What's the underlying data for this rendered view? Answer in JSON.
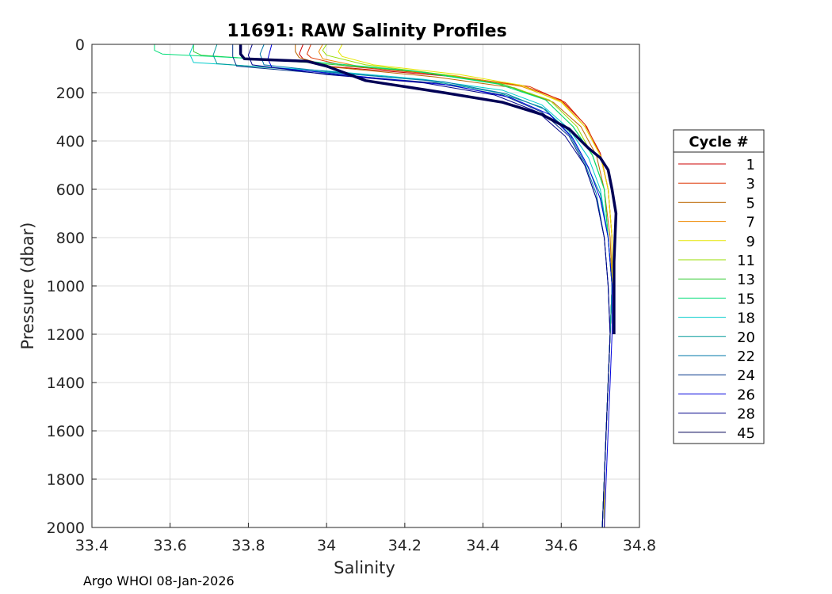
{
  "chart_data": {
    "type": "line",
    "title": "11691: RAW Salinity Profiles",
    "xlabel": "Salinity",
    "ylabel": "Pressure (dbar)",
    "xlim": [
      33.4,
      34.8
    ],
    "ylim": [
      0,
      2000
    ],
    "y_reversed": true,
    "grid": true,
    "x_ticks": [
      "33.4",
      "33.6",
      "33.8",
      "34",
      "34.2",
      "34.4",
      "34.6",
      "34.8"
    ],
    "y_ticks": [
      "0",
      "200",
      "400",
      "600",
      "800",
      "1000",
      "1200",
      "1400",
      "1600",
      "1800",
      "2000"
    ],
    "legend": {
      "title": "Cycle #",
      "placement": "outside-right"
    },
    "series": [
      {
        "name": "1",
        "color": "#cc0000",
        "points": [
          [
            33.94,
            0
          ],
          [
            33.93,
            40
          ],
          [
            33.94,
            60
          ],
          [
            34.0,
            90
          ],
          [
            34.3,
            130
          ],
          [
            34.5,
            170
          ],
          [
            34.6,
            230
          ],
          [
            34.66,
            330
          ],
          [
            34.7,
            450
          ],
          [
            34.72,
            600
          ],
          [
            34.73,
            800
          ],
          [
            34.73,
            1000
          ],
          [
            34.725,
            1200
          ],
          [
            34.72,
            1400
          ],
          [
            34.715,
            1600
          ],
          [
            34.71,
            1800
          ],
          [
            34.71,
            2000
          ]
        ]
      },
      {
        "name": "3",
        "color": "#dd3300",
        "points": [
          [
            33.96,
            0
          ],
          [
            33.95,
            40
          ],
          [
            33.96,
            55
          ],
          [
            34.05,
            90
          ],
          [
            34.32,
            130
          ],
          [
            34.52,
            175
          ],
          [
            34.61,
            240
          ],
          [
            34.665,
            340
          ],
          [
            34.7,
            460
          ],
          [
            34.72,
            600
          ],
          [
            34.73,
            800
          ],
          [
            34.73,
            1000
          ],
          [
            34.725,
            1200
          ],
          [
            34.72,
            1400
          ],
          [
            34.715,
            1600
          ],
          [
            34.71,
            1800
          ],
          [
            34.71,
            2000
          ]
        ]
      },
      {
        "name": "5",
        "color": "#bb6600",
        "points": [
          [
            33.92,
            0
          ],
          [
            33.92,
            30
          ],
          [
            33.93,
            55
          ],
          [
            34.02,
            95
          ],
          [
            34.28,
            135
          ],
          [
            34.48,
            180
          ],
          [
            34.58,
            240
          ],
          [
            34.65,
            340
          ],
          [
            34.69,
            460
          ],
          [
            34.71,
            600
          ],
          [
            34.725,
            800
          ],
          [
            34.73,
            1000
          ],
          [
            34.725,
            1200
          ],
          [
            34.72,
            1400
          ],
          [
            34.715,
            1600
          ],
          [
            34.71,
            1800
          ],
          [
            34.705,
            2000
          ]
        ]
      },
      {
        "name": "7",
        "color": "#ee8800",
        "points": [
          [
            33.99,
            0
          ],
          [
            33.98,
            30
          ],
          [
            33.99,
            60
          ],
          [
            34.08,
            90
          ],
          [
            34.33,
            130
          ],
          [
            34.5,
            175
          ],
          [
            34.6,
            235
          ],
          [
            34.66,
            340
          ],
          [
            34.7,
            460
          ],
          [
            34.72,
            600
          ],
          [
            34.73,
            800
          ],
          [
            34.73,
            1000
          ],
          [
            34.725,
            1200
          ],
          [
            34.72,
            1400
          ],
          [
            34.715,
            1600
          ],
          [
            34.71,
            1800
          ],
          [
            34.71,
            2000
          ]
        ]
      },
      {
        "name": "9",
        "color": "#e6e600",
        "points": [
          [
            34.04,
            0
          ],
          [
            34.03,
            30
          ],
          [
            34.04,
            50
          ],
          [
            34.12,
            85
          ],
          [
            34.34,
            125
          ],
          [
            34.5,
            170
          ],
          [
            34.6,
            240
          ],
          [
            34.66,
            340
          ],
          [
            34.7,
            460
          ],
          [
            34.72,
            600
          ],
          [
            34.73,
            800
          ],
          [
            34.73,
            1000
          ],
          [
            34.725,
            1200
          ],
          [
            34.72,
            1400
          ],
          [
            34.715,
            1600
          ],
          [
            34.71,
            1800
          ],
          [
            34.71,
            2000
          ]
        ]
      },
      {
        "name": "11",
        "color": "#99dd00",
        "points": [
          [
            34.0,
            0
          ],
          [
            33.99,
            25
          ],
          [
            34.0,
            45
          ],
          [
            34.1,
            85
          ],
          [
            34.3,
            125
          ],
          [
            34.46,
            170
          ],
          [
            34.57,
            230
          ],
          [
            34.64,
            340
          ],
          [
            34.68,
            460
          ],
          [
            34.71,
            600
          ],
          [
            34.72,
            800
          ],
          [
            34.73,
            1000
          ],
          [
            34.725,
            1200
          ],
          [
            34.72,
            1400
          ],
          [
            34.715,
            1600
          ],
          [
            34.71,
            1800
          ],
          [
            34.705,
            2000
          ]
        ]
      },
      {
        "name": "13",
        "color": "#33cc33",
        "points": [
          [
            33.66,
            0
          ],
          [
            33.66,
            30
          ],
          [
            33.68,
            45
          ],
          [
            33.95,
            75
          ],
          [
            34.25,
            115
          ],
          [
            34.45,
            165
          ],
          [
            34.56,
            230
          ],
          [
            34.63,
            340
          ],
          [
            34.68,
            460
          ],
          [
            34.71,
            600
          ],
          [
            34.72,
            800
          ],
          [
            34.73,
            1000
          ],
          [
            34.725,
            1200
          ],
          [
            34.72,
            1400
          ],
          [
            34.715,
            1600
          ],
          [
            34.71,
            1800
          ],
          [
            34.705,
            2000
          ]
        ]
      },
      {
        "name": "15",
        "color": "#00dd77",
        "points": [
          [
            33.56,
            0
          ],
          [
            33.56,
            25
          ],
          [
            33.58,
            40
          ],
          [
            33.95,
            70
          ],
          [
            34.22,
            110
          ],
          [
            34.44,
            165
          ],
          [
            34.56,
            230
          ],
          [
            34.63,
            340
          ],
          [
            34.68,
            460
          ],
          [
            34.71,
            600
          ],
          [
            34.72,
            800
          ],
          [
            34.73,
            1000
          ],
          [
            34.725,
            1200
          ],
          [
            34.72,
            1400
          ],
          [
            34.715,
            1600
          ],
          [
            34.71,
            1800
          ],
          [
            34.705,
            2000
          ]
        ]
      },
      {
        "name": "18",
        "color": "#00cccc",
        "points": [
          [
            33.66,
            0
          ],
          [
            33.65,
            40
          ],
          [
            33.66,
            75
          ],
          [
            34.0,
            110
          ],
          [
            34.25,
            145
          ],
          [
            34.45,
            190
          ],
          [
            34.55,
            250
          ],
          [
            34.62,
            350
          ],
          [
            34.67,
            470
          ],
          [
            34.7,
            600
          ],
          [
            34.72,
            800
          ],
          [
            34.73,
            1000
          ],
          [
            34.725,
            1200
          ],
          [
            34.72,
            1400
          ],
          [
            34.715,
            1600
          ],
          [
            34.71,
            1800
          ],
          [
            34.705,
            2000
          ]
        ]
      },
      {
        "name": "20",
        "color": "#009999",
        "points": [
          [
            33.72,
            0
          ],
          [
            33.71,
            45
          ],
          [
            33.72,
            80
          ],
          [
            34.0,
            115
          ],
          [
            34.26,
            150
          ],
          [
            34.44,
            200
          ],
          [
            34.55,
            260
          ],
          [
            34.62,
            360
          ],
          [
            34.66,
            480
          ],
          [
            34.7,
            620
          ],
          [
            34.72,
            800
          ],
          [
            34.73,
            1000
          ],
          [
            34.725,
            1200
          ],
          [
            34.72,
            1400
          ],
          [
            34.715,
            1600
          ],
          [
            34.71,
            1800
          ],
          [
            34.705,
            2000
          ]
        ]
      },
      {
        "name": "22",
        "color": "#0077aa",
        "points": [
          [
            33.84,
            0
          ],
          [
            33.83,
            40
          ],
          [
            33.84,
            85
          ],
          [
            34.05,
            120
          ],
          [
            34.3,
            155
          ],
          [
            34.46,
            205
          ],
          [
            34.56,
            270
          ],
          [
            34.62,
            370
          ],
          [
            34.66,
            490
          ],
          [
            34.69,
            620
          ],
          [
            34.71,
            800
          ],
          [
            34.72,
            1000
          ],
          [
            34.725,
            1200
          ],
          [
            34.72,
            1400
          ],
          [
            34.715,
            1600
          ],
          [
            34.71,
            1800
          ],
          [
            34.705,
            2000
          ]
        ]
      },
      {
        "name": "24",
        "color": "#003388",
        "points": [
          [
            33.76,
            0
          ],
          [
            33.76,
            50
          ],
          [
            33.77,
            90
          ],
          [
            34.02,
            125
          ],
          [
            34.28,
            160
          ],
          [
            34.45,
            210
          ],
          [
            34.55,
            280
          ],
          [
            34.62,
            380
          ],
          [
            34.66,
            500
          ],
          [
            34.69,
            640
          ],
          [
            34.71,
            800
          ],
          [
            34.72,
            1000
          ],
          [
            34.725,
            1200
          ],
          [
            34.72,
            1400
          ],
          [
            34.715,
            1600
          ],
          [
            34.71,
            1800
          ],
          [
            34.705,
            2000
          ]
        ]
      },
      {
        "name": "26",
        "color": "#0000dd",
        "points": [
          [
            33.86,
            0
          ],
          [
            33.85,
            60
          ],
          [
            33.86,
            95
          ],
          [
            34.1,
            135
          ],
          [
            34.32,
            170
          ],
          [
            34.47,
            220
          ],
          [
            34.57,
            290
          ],
          [
            34.63,
            390
          ],
          [
            34.67,
            510
          ],
          [
            34.7,
            640
          ],
          [
            34.72,
            800
          ],
          [
            34.73,
            1000
          ],
          [
            34.73,
            1200
          ],
          [
            34.725,
            1400
          ],
          [
            34.72,
            1600
          ],
          [
            34.715,
            1800
          ],
          [
            34.71,
            2000
          ]
        ]
      },
      {
        "name": "28",
        "color": "#000088",
        "points": [
          [
            33.81,
            0
          ],
          [
            33.8,
            45
          ],
          [
            33.81,
            85
          ],
          [
            34.0,
            125
          ],
          [
            34.25,
            160
          ],
          [
            34.43,
            210
          ],
          [
            34.54,
            280
          ],
          [
            34.61,
            380
          ],
          [
            34.66,
            500
          ],
          [
            34.69,
            640
          ],
          [
            34.71,
            800
          ],
          [
            34.72,
            1000
          ],
          [
            34.725,
            1200
          ],
          [
            34.72,
            1400
          ],
          [
            34.715,
            1600
          ],
          [
            34.71,
            1800
          ],
          [
            34.705,
            2000
          ]
        ]
      },
      {
        "name": "45",
        "color": "#000055",
        "points": [
          [
            33.78,
            0
          ],
          [
            33.78,
            40
          ],
          [
            33.79,
            60
          ],
          [
            33.95,
            70
          ],
          [
            34.0,
            90
          ],
          [
            34.05,
            120
          ],
          [
            34.1,
            150
          ],
          [
            34.2,
            175
          ],
          [
            34.3,
            200
          ],
          [
            34.45,
            240
          ],
          [
            34.55,
            290
          ],
          [
            34.62,
            350
          ],
          [
            34.67,
            430
          ],
          [
            34.7,
            470
          ],
          [
            34.72,
            520
          ],
          [
            34.73,
            600
          ],
          [
            34.74,
            700
          ],
          [
            34.735,
            900
          ],
          [
            34.735,
            1000
          ],
          [
            34.735,
            1200
          ]
        ]
      }
    ]
  },
  "footer": {
    "text": "Argo WHOI 08-Jan-2026"
  }
}
